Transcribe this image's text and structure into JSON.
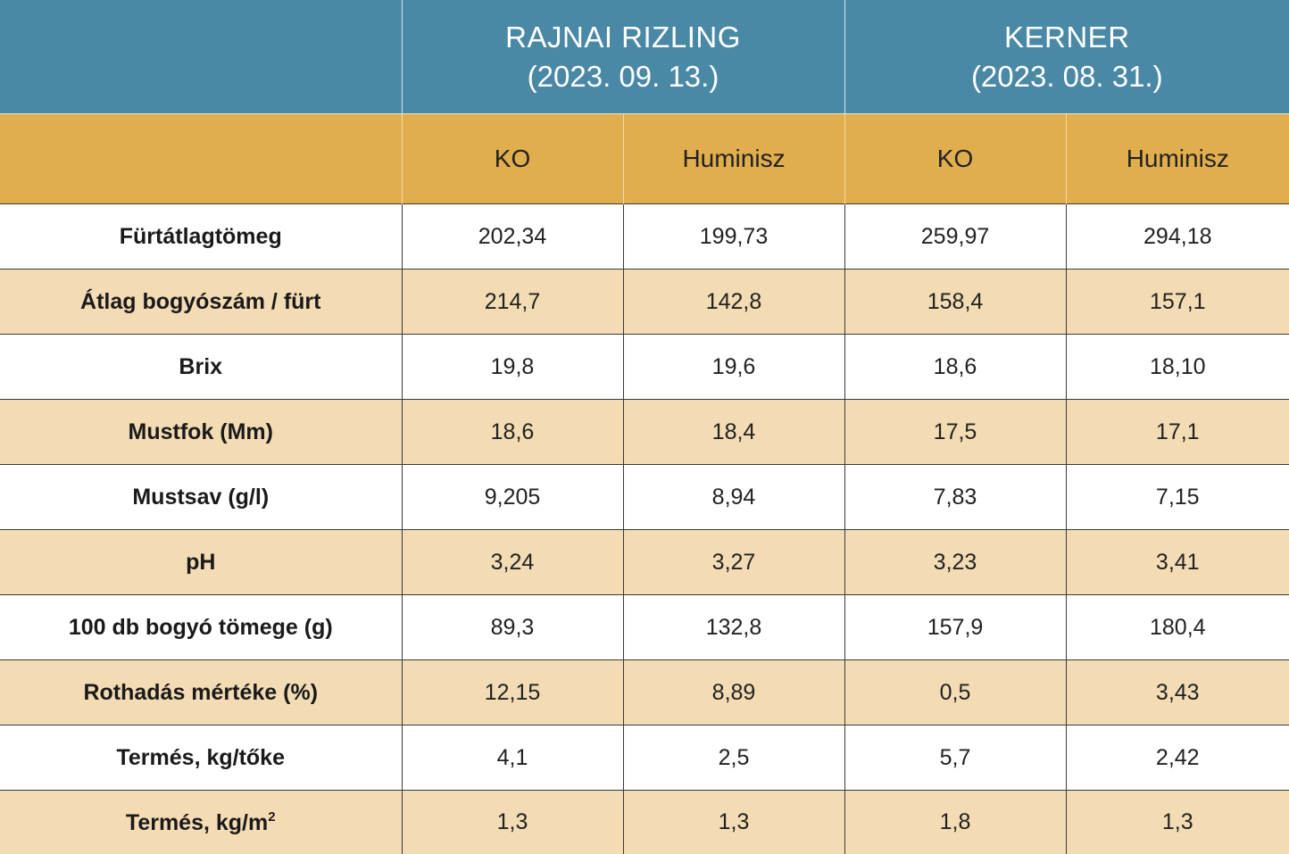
{
  "header": {
    "varieties": [
      {
        "name": "RAJNAI RIZLING",
        "date": "(2023. 09. 13.)"
      },
      {
        "name": "KERNER",
        "date": "(2023. 08. 31.)"
      }
    ],
    "treatments": [
      "KO",
      "Huminisz",
      "KO",
      "Huminisz"
    ]
  },
  "colors": {
    "header_blue": "#4a89a6",
    "header_gold": "#e1ae4e",
    "row_stripe": "#f3dcb4"
  },
  "rows": [
    {
      "label": "Fürtátlagtömeg",
      "values": [
        "202,34",
        "199,73",
        "259,97",
        "294,18"
      ]
    },
    {
      "label": "Átlag bogyószám / fürt",
      "values": [
        "214,7",
        "142,8",
        "158,4",
        "157,1"
      ]
    },
    {
      "label": "Brix",
      "values": [
        "19,8",
        "19,6",
        "18,6",
        "18,10"
      ]
    },
    {
      "label": "Mustfok (Mm)",
      "values": [
        "18,6",
        "18,4",
        "17,5",
        "17,1"
      ]
    },
    {
      "label": "Mustsav (g/l)",
      "values": [
        "9,205",
        "8,94",
        "7,83",
        "7,15"
      ]
    },
    {
      "label": "pH",
      "values": [
        "3,24",
        "3,27",
        "3,23",
        "3,41"
      ]
    },
    {
      "label": "100 db bogyó tömege (g)",
      "values": [
        "89,3",
        "132,8",
        "157,9",
        "180,4"
      ]
    },
    {
      "label": "Rothadás mértéke (%)",
      "values": [
        "12,15",
        "8,89",
        "0,5",
        "3,43"
      ]
    },
    {
      "label": "Termés, kg/tőke",
      "values": [
        "4,1",
        "2,5",
        "5,7",
        "2,42"
      ]
    },
    {
      "label": "Termés, kg/m",
      "label_sup": "2",
      "values": [
        "1,3",
        "1,3",
        "1,8",
        "1,3"
      ]
    }
  ]
}
